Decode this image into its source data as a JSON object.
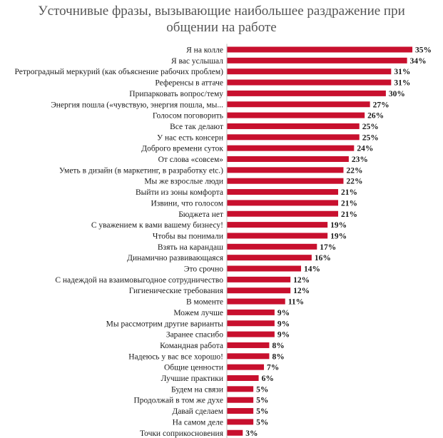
{
  "chart_data": {
    "type": "bar",
    "orientation": "horizontal",
    "title_lines": [
      "Уcточнивые фразы, вызывающие наибольшее раздражение при",
      "общении на работе"
    ],
    "bar_color": "#c8102e",
    "value_suffix": "%",
    "grid": false,
    "categories": [
      "Я на колле",
      "Я вас услышал",
      "Ретроградный меркурий (как объяснение рабочих проблем)",
      "Референсы в аттаче",
      "Припарковать вопрос/тему",
      "Энергия пошла («чувствую, энергия пошла, мы...",
      "Голосом поговорить",
      "Все так делают",
      "У нас есть консерн",
      "Доброго времени суток",
      "От слова «совсем»",
      "Уметь в дизайн (в маркетинг, в разработку etc.)",
      "Мы же взрослые люди",
      "Выйти из зоны комфорта",
      "Извини, что голосом",
      "Бюджета нет",
      "С уважением к вами вашему бизнесу!",
      "Чтобы вы понимали",
      "Взять на карандаш",
      "Динамично развивающаяся",
      "Это срочно",
      "С надеждой на взаимовыгодное сотрудничество",
      "Гигиенические требования",
      "В моменте",
      "Можем лучше",
      "Мы рассмотрим другие варианты",
      "Заранее спасибо",
      "Командная работа",
      "Надеюсь у вас все хорошо!",
      "Общие ценности",
      "Лучшие практики",
      "Будем на связи",
      "Продолжай в том же духе",
      "Давай сделаем",
      "На самом деле",
      "Точки соприкосновения"
    ],
    "values": [
      35,
      34,
      31,
      31,
      30,
      27,
      26,
      25,
      25,
      24,
      23,
      22,
      22,
      21,
      21,
      21,
      19,
      19,
      17,
      16,
      14,
      12,
      12,
      11,
      9,
      9,
      9,
      8,
      8,
      7,
      6,
      5,
      5,
      5,
      5,
      3
    ]
  }
}
